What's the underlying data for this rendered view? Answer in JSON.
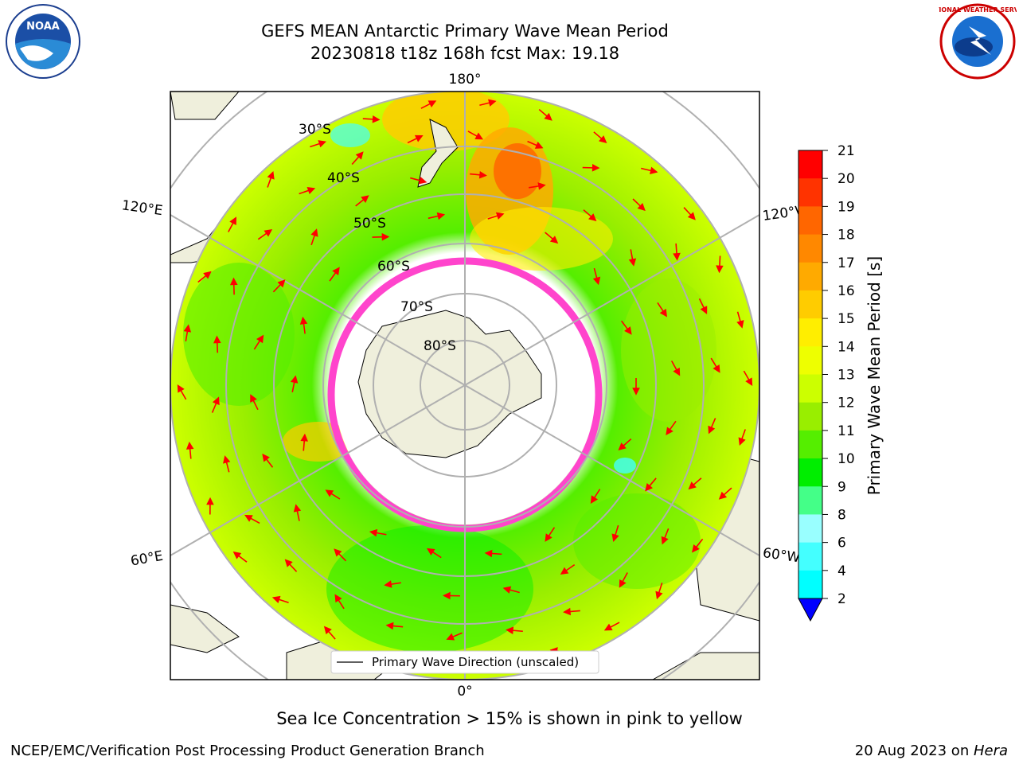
{
  "title": {
    "line1": "GEFS MEAN Antarctic Primary Wave Mean Period",
    "line2": "20230818 t18z 168h fcst   Max: 19.18"
  },
  "map": {
    "projection": "south-polar-stereographic",
    "longitude_labels": [
      "180°",
      "120°E",
      "120°W",
      "60°E",
      "60°W",
      "0°"
    ],
    "latitude_labels": [
      "30°S",
      "40°S",
      "50°S",
      "60°S",
      "70°S",
      "80°S"
    ],
    "legend_label": "Primary Wave Direction (unscaled)",
    "arrow_color": "#ff0000",
    "land_color": "#efefdc",
    "sea_ice_color": "#ff44cc"
  },
  "colorbar": {
    "label": "Primary Wave Mean Period [s]",
    "ticks": [
      "21",
      "20",
      "19",
      "18",
      "17",
      "16",
      "15",
      "14",
      "13",
      "12",
      "11",
      "10",
      "9",
      "8",
      "6",
      "4",
      "2"
    ],
    "colors": [
      "#ff0000",
      "#ff3300",
      "#ff6600",
      "#ff8800",
      "#ffaa00",
      "#ffcc00",
      "#ffee00",
      "#eeff00",
      "#ccff00",
      "#99ee00",
      "#55ee00",
      "#00ee00",
      "#44ff88",
      "#99ffff",
      "#44ffff",
      "#00ffff",
      "#00ccff",
      "#0066ff"
    ],
    "under_color": "#0000ff"
  },
  "logos": {
    "left": "NOAA",
    "right": "NATIONAL WEATHER SERVICE"
  },
  "caption": "Sea Ice Concentration > 15% is shown in pink to yellow",
  "footer": {
    "left": "NCEP/EMC/Verification Post Processing Product Generation Branch",
    "right_date": "20 Aug 2023 on ",
    "right_machine": "Hera"
  }
}
